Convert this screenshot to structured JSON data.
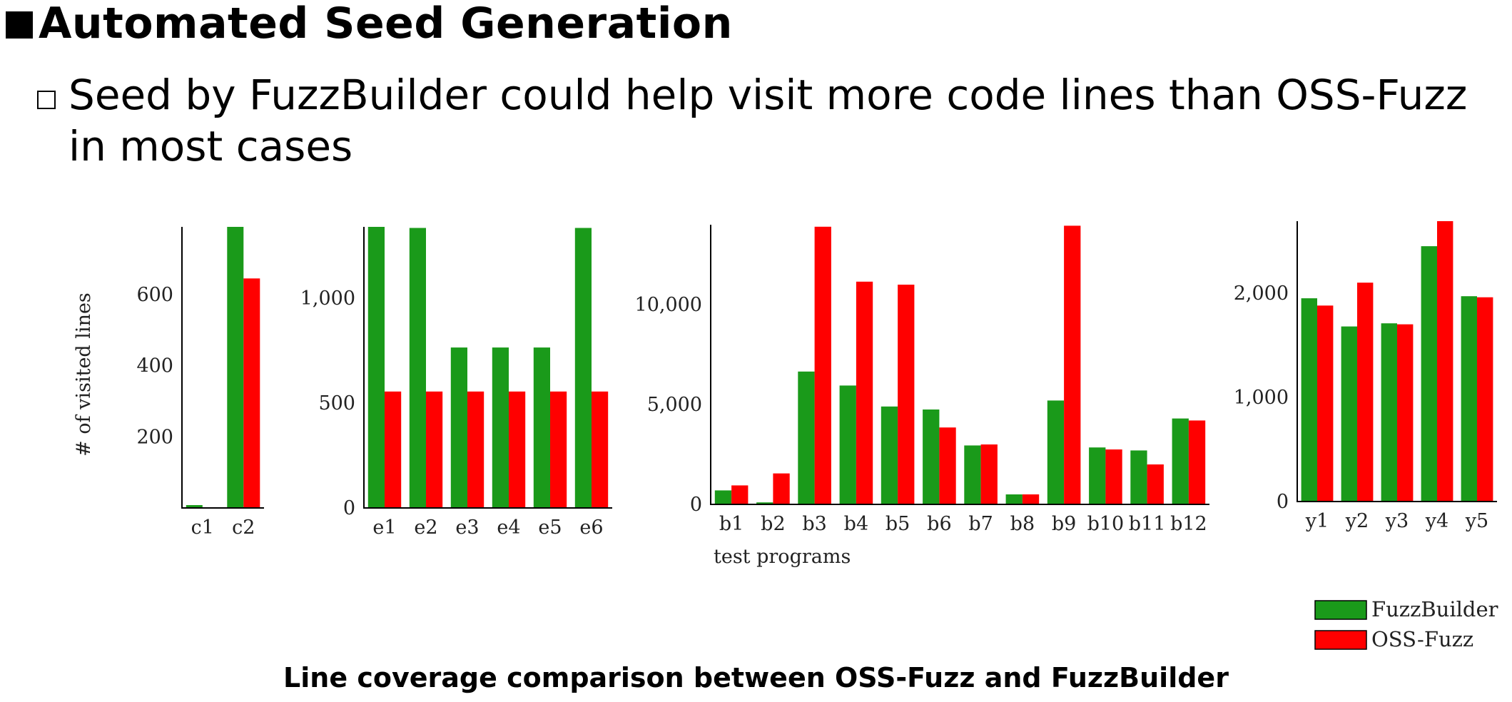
{
  "slide": {
    "title": "Automated Seed Generation",
    "subtitle": "Seed by FuzzBuilder could help visit more code lines than OSS-Fuzz in most cases",
    "caption": "Line coverage comparison between OSS-Fuzz and FuzzBuilder"
  },
  "colors": {
    "fuzzbuilder": "#1a9a1a",
    "ossfuzz": "#ff0000"
  },
  "chart_data": [
    {
      "type": "bar",
      "categories": [
        "c1",
        "c2"
      ],
      "series": [
        {
          "name": "FuzzBuilder",
          "values": [
            8,
            790
          ]
        },
        {
          "name": "OSS-Fuzz",
          "values": [
            2,
            645
          ]
        }
      ],
      "ylabel": "# of visited lines",
      "xlabel": "",
      "ylim": [
        0,
        790
      ],
      "yticks": [
        200,
        400,
        600
      ],
      "ytick_labels": [
        "200",
        "400",
        "600"
      ]
    },
    {
      "type": "bar",
      "categories": [
        "e1",
        "e2",
        "e3",
        "e4",
        "e5",
        "e6"
      ],
      "series": [
        {
          "name": "FuzzBuilder",
          "values": [
            1340,
            1335,
            765,
            765,
            765,
            1335
          ]
        },
        {
          "name": "OSS-Fuzz",
          "values": [
            555,
            555,
            555,
            555,
            555,
            555
          ]
        }
      ],
      "xlabel": "",
      "ylabel": "",
      "ylim": [
        0,
        1340
      ],
      "yticks": [
        0,
        500,
        1000
      ],
      "ytick_labels": [
        "0",
        "500",
        "1,000"
      ]
    },
    {
      "type": "bar",
      "categories": [
        "b1",
        "b2",
        "b3",
        "b4",
        "b5",
        "b6",
        "b7",
        "b8",
        "b9",
        "b10",
        "b11",
        "b12"
      ],
      "series": [
        {
          "name": "FuzzBuilder",
          "values": [
            700,
            100,
            6650,
            5950,
            4900,
            4750,
            2950,
            500,
            5200,
            2850,
            2700,
            4300
          ]
        },
        {
          "name": "OSS-Fuzz",
          "values": [
            950,
            1550,
            13900,
            11150,
            11000,
            3850,
            3000,
            500,
            13950,
            2750,
            2000,
            4200
          ]
        }
      ],
      "xlabel": "test programs",
      "ylabel": "",
      "ylim": [
        0,
        14000
      ],
      "yticks": [
        0,
        5000,
        10000
      ],
      "ytick_labels": [
        "0",
        "5,000",
        "10,000"
      ]
    },
    {
      "type": "bar",
      "categories": [
        "y1",
        "y2",
        "y3",
        "y4",
        "y5"
      ],
      "series": [
        {
          "name": "FuzzBuilder",
          "values": [
            1950,
            1680,
            1710,
            2450,
            1970
          ]
        },
        {
          "name": "OSS-Fuzz",
          "values": [
            1880,
            2100,
            1700,
            2690,
            1960
          ]
        }
      ],
      "xlabel": "",
      "ylabel": "",
      "ylim": [
        0,
        2690
      ],
      "yticks": [
        0,
        1000,
        2000
      ],
      "ytick_labels": [
        "0",
        "1,000",
        "2,000"
      ]
    }
  ],
  "legend": {
    "position": "bottom-right",
    "items": [
      {
        "label": "FuzzBuilder",
        "color": "#1a9a1a"
      },
      {
        "label": "OSS-Fuzz",
        "color": "#ff0000"
      }
    ]
  }
}
